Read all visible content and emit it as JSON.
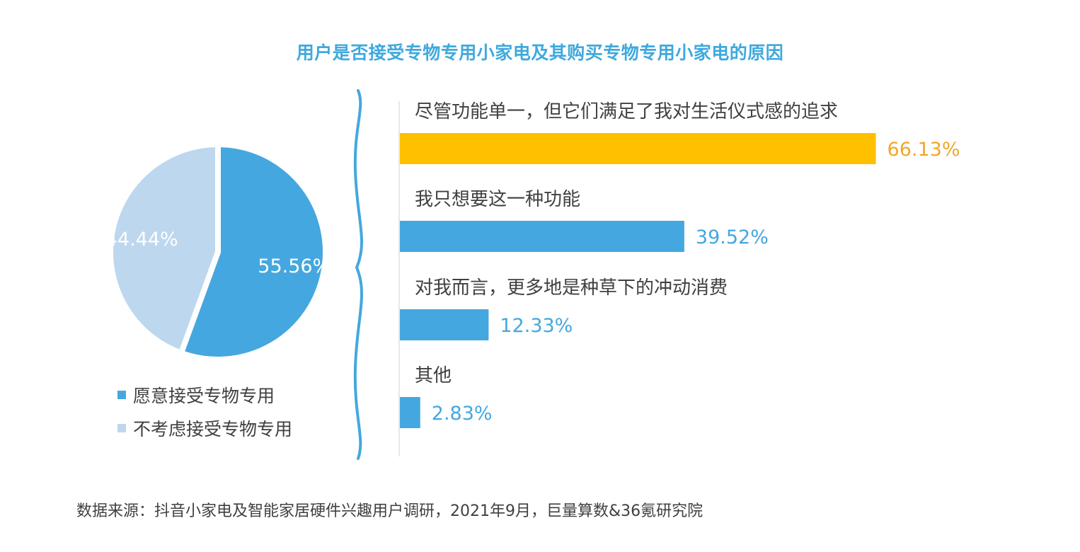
{
  "chart_data": [
    {
      "type": "pie",
      "title": "用户是否接受专物专用小家电及其购买专物专用小家电的原因",
      "slices": [
        {
          "label": "愿意接受专物专用",
          "value": 55.56,
          "display": "55.56%",
          "color": "#45a7df"
        },
        {
          "label": "不考虑接受专物专用",
          "value": 44.44,
          "display": "44.44%",
          "color": "#bdd7ee"
        }
      ]
    },
    {
      "type": "bar",
      "orientation": "horizontal",
      "categories": [
        "尽管功能单一，但它们满足了我对生活仪式感的追求",
        "我只想要这一种功能",
        "对我而言，更多地是种草下的冲动消费",
        "其他"
      ],
      "values": [
        66.13,
        39.52,
        12.33,
        2.83
      ],
      "value_labels": [
        "66.13%",
        "39.52%",
        "12.33%",
        "2.83%"
      ],
      "bar_colors": [
        "#ffc000",
        "#45a7df",
        "#45a7df",
        "#45a7df"
      ],
      "value_label_colors": [
        "#f2a628",
        "#45a7df",
        "#45a7df",
        "#45a7df"
      ]
    }
  ],
  "source_note": "数据来源：抖音小家电及智能家居硬件兴趣用户调研，2021年9月，巨量算数&36氪研究院"
}
